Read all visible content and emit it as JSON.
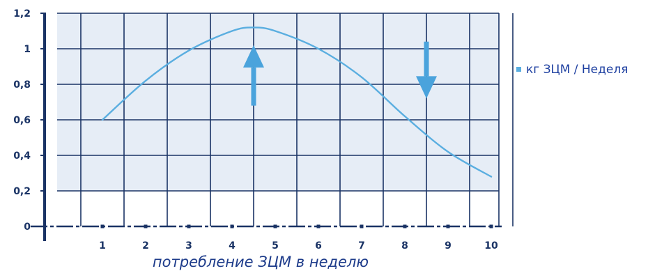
{
  "chart_data": {
    "type": "line",
    "xlabel": "потребление ЗЦМ в неделю",
    "ylabel": "",
    "x_ticks": [
      1,
      2,
      3,
      4,
      5,
      6,
      7,
      8,
      9,
      10
    ],
    "y_ticks": [
      "0",
      "0,2",
      "0,4",
      "0,6",
      "0,8",
      "1",
      "1,2"
    ],
    "y_tick_values": [
      0,
      0.2,
      0.4,
      0.6,
      0.8,
      1,
      1.2
    ],
    "xlim": [
      0.25,
      10.5
    ],
    "ylim": [
      0,
      1.2
    ],
    "grid": true,
    "legend_position": "right",
    "series": [
      {
        "name": "кг ЗЦМ / Неделя",
        "x": [
          1,
          2,
          3,
          4,
          4.5,
          5,
          6,
          7,
          8,
          9,
          10
        ],
        "y": [
          0.6,
          0.82,
          0.99,
          1.1,
          1.12,
          1.1,
          1.0,
          0.84,
          0.62,
          0.42,
          0.28
        ]
      }
    ],
    "annotations": [
      {
        "type": "arrow",
        "direction": "up",
        "x": 4.5,
        "y_from": 0.68,
        "y_to": 1.02
      },
      {
        "type": "arrow",
        "direction": "down",
        "x": 8.5,
        "y_from": 1.04,
        "y_to": 0.72
      }
    ],
    "colors": {
      "line": "#5aaee0",
      "arrow": "#4aa3dc",
      "plot_background": "#e6edf6",
      "grid": "#1a3365",
      "axis": "#1a3365",
      "legend_marker": "#5aaee0"
    }
  }
}
